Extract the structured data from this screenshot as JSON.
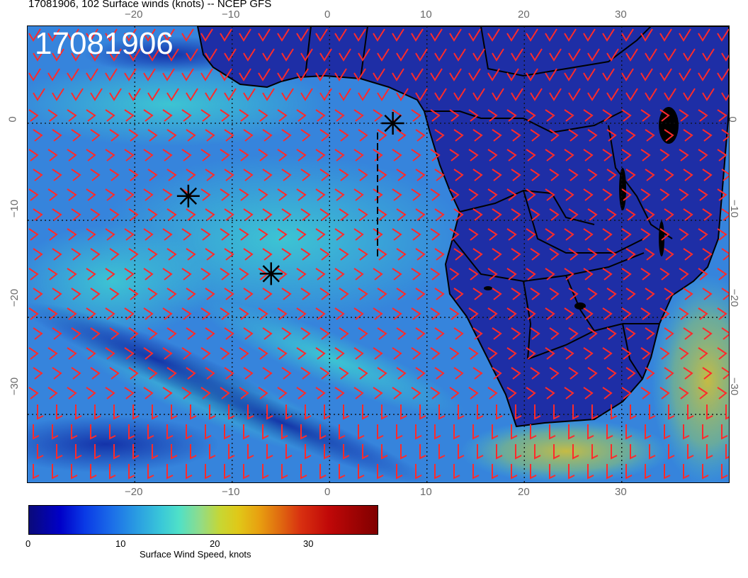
{
  "title": "17081906, 102 Surface winds (knots) -- NCEP GFS",
  "timestamp": "17081906",
  "lon_ticks_top": [
    "−20",
    "−10",
    "0",
    "10",
    "20",
    "30"
  ],
  "lon_ticks_bottom": [
    "−20",
    "−10",
    "0",
    "10",
    "20",
    "30"
  ],
  "lat_ticks_left": [
    "0",
    "−10",
    "−20",
    "−30"
  ],
  "lat_ticks_right": [
    "0",
    "−10",
    "−20",
    "−30"
  ],
  "colorbar": {
    "title": "Surface Wind Speed, knots",
    "ticks": [
      "0",
      "10",
      "20",
      "30"
    ],
    "range": [
      0,
      37
    ]
  },
  "map": {
    "lon_range": [
      -31,
      41
    ],
    "lat_range": [
      -37,
      10
    ],
    "grid_lons": [
      -20,
      -10,
      0,
      10,
      20,
      30
    ],
    "grid_lats": [
      0,
      -10,
      -20,
      -30
    ],
    "markers": [
      {
        "lon": -14.5,
        "lat": -7.5
      },
      {
        "lon": -6.0,
        "lat": -15.5
      },
      {
        "lon": 6.5,
        "lat": 0.0
      }
    ],
    "land_color": "#1e2ea8",
    "ocean_color": "#3a86e0",
    "barb_color": "#ff2020"
  }
}
